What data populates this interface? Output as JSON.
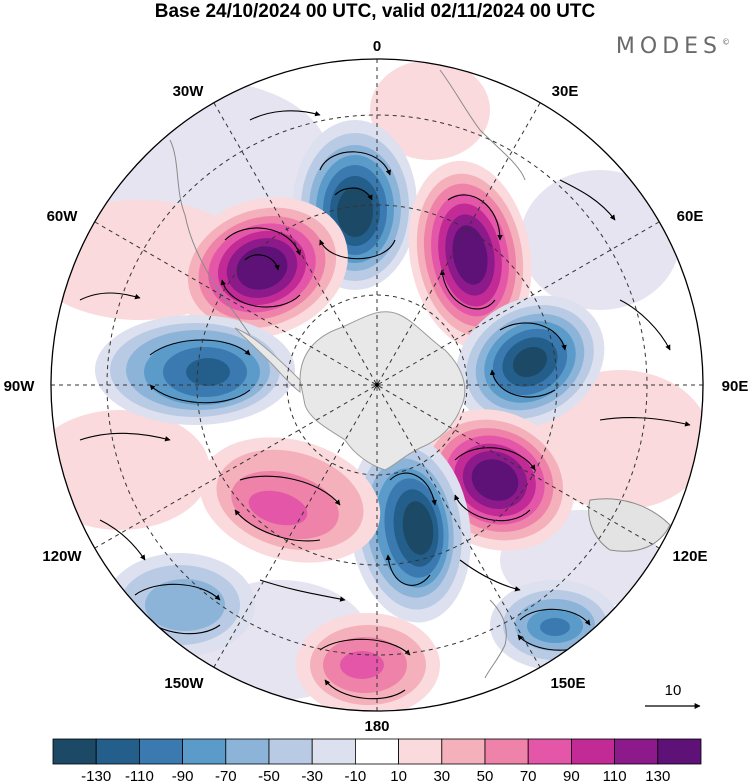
{
  "title": "Base 24/10/2024 00 UTC, valid 02/11/2024 00 UTC",
  "brand": "MODES",
  "brand_mark": "©",
  "meridian_labels": {
    "m0": "0",
    "m30e": "30E",
    "m60e": "60E",
    "m90e": "90E",
    "m120e": "120E",
    "m150e": "150E",
    "m180": "180",
    "m150w": "150W",
    "m120w": "120W",
    "m90w": "90W",
    "m60w": "60W",
    "m30w": "30W"
  },
  "reference_vector_label": "10",
  "colorbar": {
    "ticks": [
      "-130",
      "-110",
      "-90",
      "-70",
      "-50",
      "-30",
      "-10",
      "10",
      "30",
      "50",
      "70",
      "90",
      "110",
      "130"
    ],
    "colors": [
      "#1c4a66",
      "#245f8c",
      "#3a7ab0",
      "#5b9bca",
      "#8cb4d8",
      "#b8cae4",
      "#dde0ee",
      "#ffffff",
      "#fadadd",
      "#f4b0bb",
      "#ef82a8",
      "#e457a8",
      "#c22a95",
      "#8d1a8a",
      "#5e1278"
    ]
  },
  "anomalies": [
    {
      "name": "blue-north",
      "kind": "low",
      "color": "#1c4a66"
    },
    {
      "name": "purple-northwest",
      "kind": "high",
      "color": "#5e1278"
    },
    {
      "name": "purple-northeast",
      "kind": "high",
      "color": "#5e1278"
    },
    {
      "name": "blue-west",
      "kind": "low",
      "color": "#245f8c"
    },
    {
      "name": "blue-east",
      "kind": "low",
      "color": "#1c4a66"
    },
    {
      "name": "purple-southeast",
      "kind": "high",
      "color": "#5e1278"
    },
    {
      "name": "blue-south",
      "kind": "low",
      "color": "#1c4a66"
    },
    {
      "name": "pink-southwest",
      "kind": "high",
      "color": "#e457a8"
    },
    {
      "name": "pink-south",
      "kind": "high",
      "color": "#e457a8"
    },
    {
      "name": "blue-far-southwest",
      "kind": "low",
      "color": "#8cb4d8"
    },
    {
      "name": "blue-far-southeast",
      "kind": "low",
      "color": "#3a7ab0"
    }
  ]
}
